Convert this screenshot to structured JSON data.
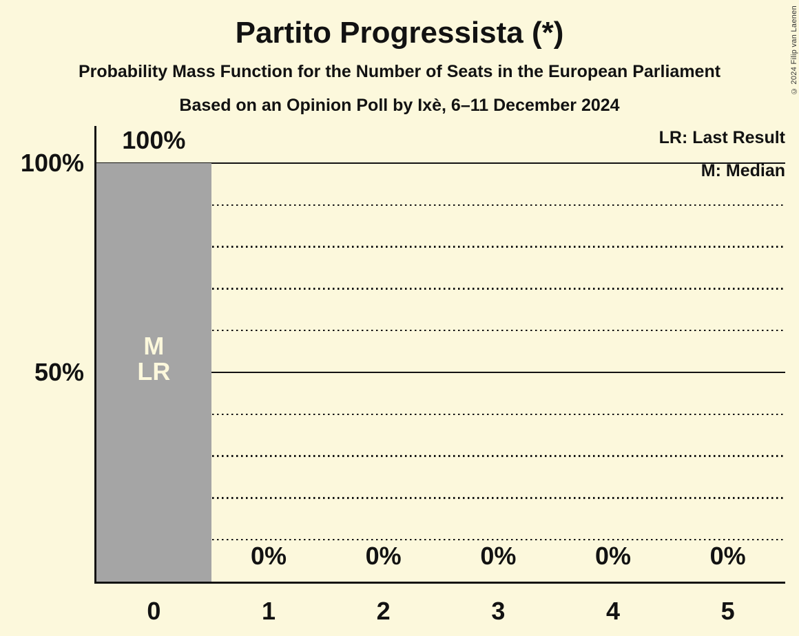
{
  "header": {
    "title": "Partito Progressista (*)",
    "subtitle": "Probability Mass Function for the Number of Seats in the European Parliament",
    "poll_line": "Based on an Opinion Poll by Ixè, 6–11 December 2024"
  },
  "copyright": "© 2024 Filip van Laenen",
  "legend": {
    "last_result": "LR: Last Result",
    "median": "M: Median"
  },
  "colors": {
    "background": "#FCF8DC",
    "bar": "#A5A5A5",
    "text": "#121212",
    "annotation_text": "#FCF8DC"
  },
  "chart_data": {
    "type": "bar",
    "title": "Partito Progressista (*)",
    "xlabel": "",
    "ylabel": "",
    "categories": [
      "0",
      "1",
      "2",
      "3",
      "4",
      "5"
    ],
    "values": [
      100,
      0,
      0,
      0,
      0,
      0
    ],
    "value_labels": [
      "100%",
      "0%",
      "0%",
      "0%",
      "0%",
      "0%"
    ],
    "annotations": [
      {
        "category_index": 0,
        "lines": [
          "M",
          "LR"
        ]
      }
    ],
    "y_ticks": [
      {
        "label": "100%",
        "pct": 100
      },
      {
        "label": "50%",
        "pct": 50
      }
    ],
    "solid_gridlines_pct": [
      100,
      50
    ],
    "dotted_gridlines_pct": [
      90,
      80,
      70,
      60,
      40,
      30,
      20,
      10
    ],
    "ylim": [
      0,
      100
    ],
    "grid": true,
    "legend_position": "top-right"
  }
}
